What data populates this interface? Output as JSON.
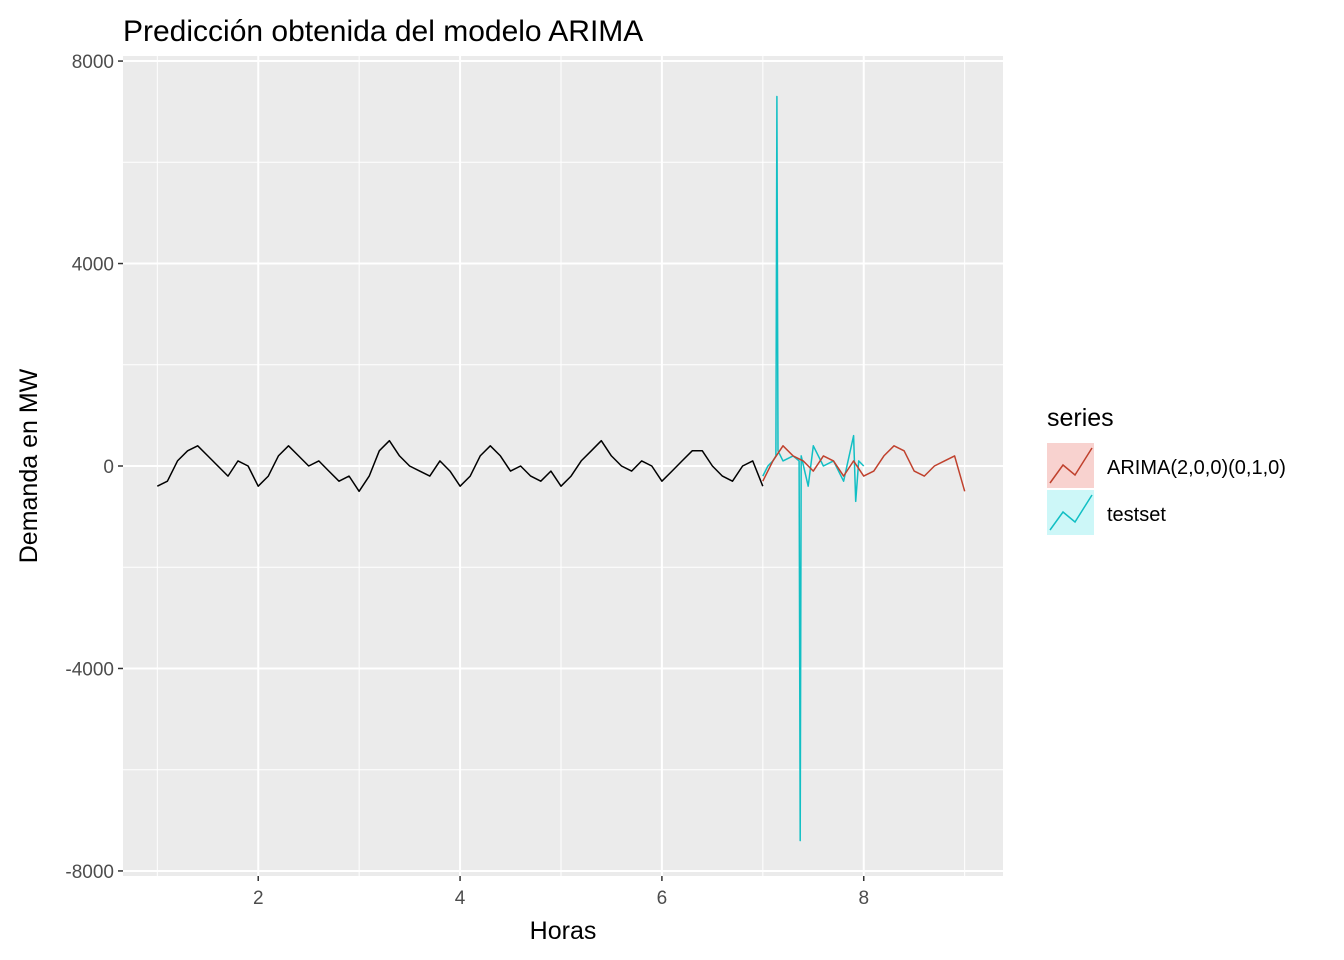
{
  "chart_data": {
    "type": "line",
    "title": "Predicción obtenida del modelo ARIMA",
    "xlabel": "Horas",
    "ylabel": "Demanda en MW",
    "xlim": [
      0.66,
      9.38
    ],
    "ylim": [
      -8100,
      8100
    ],
    "x_ticks": [
      2,
      4,
      6,
      8
    ],
    "x_tick_labels": [
      "2",
      "4",
      "6",
      "8"
    ],
    "y_ticks": [
      -8000,
      -4000,
      0,
      4000,
      8000
    ],
    "y_tick_labels": [
      "-8000",
      "-4000",
      "0",
      "4000",
      "8000"
    ],
    "grid": true,
    "legend": {
      "title": "series",
      "position": "right",
      "entries": [
        {
          "label": "ARIMA(2,0,0)(0,1,0)",
          "color": "#c0412d",
          "key_fill": "#f8d2cf"
        },
        {
          "label": "testset",
          "color": "#11bfc4",
          "key_fill": "#cdf7f8"
        }
      ]
    },
    "series": [
      {
        "color": "#000000",
        "x": [
          1.0,
          1.1,
          1.2,
          1.3,
          1.4,
          1.5,
          1.6,
          1.7,
          1.8,
          1.9,
          2.0,
          2.1,
          2.2,
          2.3,
          2.4,
          2.5,
          2.6,
          2.7,
          2.8,
          2.9,
          3.0,
          3.1,
          3.2,
          3.3,
          3.4,
          3.5,
          3.6,
          3.7,
          3.8,
          3.9,
          4.0,
          4.1,
          4.2,
          4.3,
          4.4,
          4.5,
          4.6,
          4.7,
          4.8,
          4.9,
          5.0,
          5.1,
          5.2,
          5.3,
          5.4,
          5.5,
          5.6,
          5.7,
          5.8,
          5.9,
          6.0,
          6.1,
          6.2,
          6.3,
          6.4,
          6.5,
          6.6,
          6.7,
          6.8,
          6.9,
          7.0
        ],
        "values": [
          -400,
          -300,
          100,
          300,
          400,
          200,
          0,
          -200,
          100,
          0,
          -400,
          -200,
          200,
          400,
          200,
          0,
          100,
          -100,
          -300,
          -200,
          -500,
          -200,
          300,
          500,
          200,
          0,
          -100,
          -200,
          100,
          -100,
          -400,
          -200,
          200,
          400,
          200,
          -100,
          0,
          -200,
          -300,
          -100,
          -400,
          -200,
          100,
          300,
          500,
          200,
          0,
          -100,
          100,
          0,
          -300,
          -100,
          100,
          300,
          300,
          0,
          -200,
          -300,
          0,
          100,
          -400
        ]
      },
      {
        "name": "testset",
        "color": "#11bfc4",
        "x": [
          7.0,
          7.05,
          7.1,
          7.13,
          7.14,
          7.15,
          7.2,
          7.3,
          7.36,
          7.37,
          7.38,
          7.45,
          7.5,
          7.6,
          7.7,
          7.8,
          7.9,
          7.92,
          7.95,
          8.0
        ],
        "values": [
          -200,
          0,
          100,
          200,
          7300,
          300,
          100,
          200,
          100,
          -7400,
          200,
          -400,
          400,
          0,
          100,
          -300,
          600,
          -700,
          100,
          0
        ]
      },
      {
        "name": "ARIMA(2,0,0)(0,1,0)",
        "color": "#c0412d",
        "x": [
          7.0,
          7.1,
          7.2,
          7.3,
          7.4,
          7.5,
          7.6,
          7.7,
          7.8,
          7.9,
          8.0,
          8.1,
          8.2,
          8.3,
          8.4,
          8.5,
          8.6,
          8.7,
          8.8,
          8.9,
          9.0
        ],
        "values": [
          -300,
          100,
          400,
          200,
          100,
          -100,
          200,
          100,
          -200,
          100,
          -200,
          -100,
          200,
          400,
          300,
          -100,
          -200,
          0,
          100,
          200,
          -500
        ]
      }
    ]
  }
}
